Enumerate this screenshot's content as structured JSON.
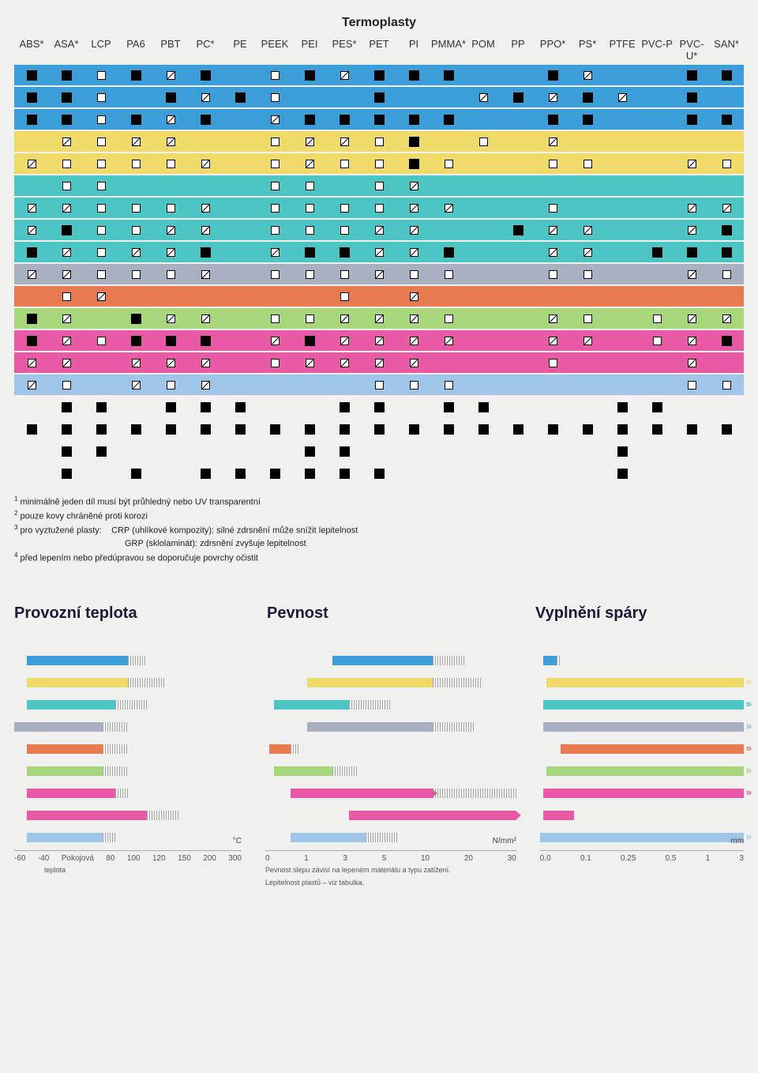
{
  "title": "Termoplasty",
  "columns": [
    "ABS*",
    "ASA*",
    "LCP",
    "PA6",
    "PBT",
    "PC*",
    "PE",
    "PEEK",
    "PEI",
    "PES*",
    "PET",
    "PI",
    "PMMA*",
    "POM",
    "PP",
    "PPO*",
    "PS*",
    "PTFE",
    "PVC-P",
    "PVC-U*",
    "SAN*"
  ],
  "legend": {
    "s": "solid",
    "h": "half",
    "o": "open",
    "": "empty"
  },
  "row_colors": [
    "#3b9ed8",
    "#3b9ed8",
    "#3b9ed8",
    "#f0db6a",
    "#f0db6a",
    "#4ec5c5",
    "#4ec5c5",
    "#4ec5c5",
    "#4ec5c5",
    "#a8b0c2",
    "#e77a50",
    "#a8d67a",
    "#e85aa5",
    "#e85aa5",
    "#9fc5e8",
    "#f0f0ef",
    "#f0f0ef",
    "#f0f0ef",
    "#f0f0ef"
  ],
  "rows": [
    [
      "s",
      "s",
      "o",
      "s",
      "h",
      "s",
      "",
      "o",
      "s",
      "h",
      "s",
      "s",
      "s",
      "",
      "",
      "s",
      "h",
      "",
      "",
      "s",
      "s"
    ],
    [
      "s",
      "s",
      "o",
      "",
      "s",
      "h",
      "s",
      "o",
      "",
      "",
      "s",
      "",
      "",
      "h",
      "s",
      "h",
      "s",
      "h",
      "",
      "s",
      ""
    ],
    [
      "s",
      "s",
      "o",
      "s",
      "h",
      "s",
      "",
      "h",
      "s",
      "s",
      "s",
      "s",
      "s",
      "",
      "",
      "s",
      "s",
      "",
      "",
      "s",
      "s"
    ],
    [
      "",
      "h",
      "o",
      "h",
      "h",
      "",
      "",
      "o",
      "h",
      "h",
      "o",
      "s",
      "",
      "o",
      "",
      "h",
      "",
      "",
      "",
      "",
      ""
    ],
    [
      "h",
      "o",
      "o",
      "o",
      "o",
      "h",
      "",
      "o",
      "h",
      "o",
      "o",
      "s",
      "o",
      "",
      "",
      "o",
      "o",
      "",
      "",
      "h",
      "o"
    ],
    [
      "",
      "o",
      "o",
      "",
      "",
      "",
      "",
      "o",
      "o",
      "",
      "o",
      "h",
      "",
      "",
      "",
      "",
      "",
      "",
      "",
      "",
      ""
    ],
    [
      "h",
      "h",
      "o",
      "o",
      "o",
      "h",
      "",
      "o",
      "o",
      "o",
      "o",
      "h",
      "h",
      "",
      "",
      "o",
      "",
      "",
      "",
      "h",
      "h"
    ],
    [
      "h",
      "s",
      "o",
      "o",
      "h",
      "h",
      "",
      "o",
      "o",
      "o",
      "h",
      "h",
      "",
      "",
      "s",
      "h",
      "h",
      "",
      "",
      "h",
      "s"
    ],
    [
      "s",
      "h",
      "o",
      "h",
      "h",
      "s",
      "",
      "h",
      "s",
      "s",
      "h",
      "h",
      "s",
      "",
      "",
      "h",
      "h",
      "",
      "s",
      "s",
      "s"
    ],
    [
      "h",
      "h",
      "o",
      "o",
      "o",
      "h",
      "",
      "o",
      "o",
      "o",
      "h",
      "o",
      "o",
      "",
      "",
      "o",
      "o",
      "",
      "",
      "h",
      "o"
    ],
    [
      "",
      "o",
      "h",
      "",
      "",
      "",
      "",
      "",
      "",
      "o",
      "",
      "h",
      "",
      "",
      "",
      "",
      "",
      "",
      "",
      "",
      ""
    ],
    [
      "s",
      "h",
      "",
      "s",
      "h",
      "h",
      "",
      "o",
      "o",
      "h",
      "h",
      "h",
      "o",
      "",
      "",
      "h",
      "o",
      "",
      "o",
      "h",
      "h"
    ],
    [
      "s",
      "h",
      "o",
      "s",
      "s",
      "s",
      "",
      "h",
      "s",
      "h",
      "h",
      "h",
      "h",
      "",
      "",
      "h",
      "h",
      "",
      "o",
      "h",
      "s"
    ],
    [
      "h",
      "h",
      "",
      "h",
      "h",
      "h",
      "",
      "o",
      "h",
      "h",
      "h",
      "h",
      "",
      "",
      "",
      "o",
      "",
      "",
      "",
      "h",
      ""
    ],
    [
      "h",
      "o",
      "",
      "h",
      "o",
      "h",
      "",
      "",
      "",
      "",
      "o",
      "o",
      "o",
      "",
      "",
      "",
      "",
      "",
      "",
      "o",
      "o"
    ],
    [
      "",
      "s",
      "s",
      "",
      "s",
      "s",
      "s",
      "",
      "",
      "s",
      "s",
      "",
      "s",
      "s",
      "",
      "",
      "",
      "s",
      "s",
      "",
      ""
    ],
    [
      "s",
      "s",
      "s",
      "s",
      "s",
      "s",
      "s",
      "s",
      "s",
      "s",
      "s",
      "s",
      "s",
      "s",
      "s",
      "s",
      "s",
      "s",
      "s",
      "s",
      "s"
    ],
    [
      "",
      "s",
      "s",
      "",
      "",
      "",
      "",
      "",
      "s",
      "s",
      "",
      "",
      "",
      "",
      "",
      "",
      "",
      "s",
      "",
      "",
      ""
    ],
    [
      "",
      "s",
      "",
      "s",
      "",
      "s",
      "s",
      "s",
      "s",
      "s",
      "s",
      "",
      "",
      "",
      "",
      "",
      "",
      "s",
      "",
      "",
      ""
    ]
  ],
  "notes": {
    "n1": "minimálně jeden díl musí být průhledný nebo UV transparentní",
    "n2": "pouze kovy chráněné proti korozi",
    "n3a": "pro vyztužené plasty:",
    "n3b": "CRP (uhlíkové kompozity): silné zdrsnění může snížit lepitelnost",
    "n3c": "GRP (sklolaminát): zdrsnění zvyšuje lepitelnost",
    "n4": "před lepením nebo předúpravou se doporučuje povrchy očistit"
  },
  "sections": {
    "t1": "Provozní teplota",
    "t2": "Pevnost",
    "t3": "Vyplnění spáry"
  },
  "chart_colors": [
    "#3b9ed8",
    "#f0db6a",
    "#4ec5c5",
    "#a8b0c2",
    "#e77a50",
    "#a8d67a",
    "#e85aa5",
    "#e85aa5",
    "#9fc5e8"
  ],
  "chart1": {
    "unit": "°C",
    "ticks": [
      "-60",
      "-40",
      "Pokojová",
      "80",
      "100",
      "120",
      "150",
      "200",
      "300"
    ],
    "sub": "teplota",
    "range": [
      -60,
      300
    ],
    "bars": [
      {
        "from": -40,
        "to": 120,
        "hatch_from": 120,
        "hatch_to": 150
      },
      {
        "from": -40,
        "to": 120,
        "hatch_from": 120,
        "hatch_to": 180
      },
      {
        "from": -40,
        "to": 100,
        "hatch_from": 100,
        "hatch_to": 150
      },
      {
        "from": -60,
        "to": 80,
        "hatch_from": 80,
        "hatch_to": 120
      },
      {
        "from": -40,
        "to": 80,
        "hatch_from": 80,
        "hatch_to": 120
      },
      {
        "from": -40,
        "to": 80,
        "hatch_from": 80,
        "hatch_to": 120
      },
      {
        "from": -40,
        "to": 100,
        "hatch_from": 100,
        "hatch_to": 120
      },
      {
        "from": -40,
        "to": 150,
        "hatch_from": 150,
        "hatch_to": 200
      },
      {
        "from": -40,
        "to": 80,
        "hatch_from": 80,
        "hatch_to": 100
      }
    ]
  },
  "chart2": {
    "unit": "N/mm²",
    "ticks": [
      "0",
      "1",
      "3",
      "5",
      "10",
      "20",
      "30"
    ],
    "sub1": "Pevnost slepu závisí na lepeném materiálu a typu zatížení.",
    "sub2": "Lepitelnost plastů – viz tabulka.",
    "range": [
      0,
      30
    ],
    "bars": [
      {
        "from": 8,
        "to": 20,
        "hatch_from": 20,
        "hatch_to": 24
      },
      {
        "from": 5,
        "to": 20,
        "hatch_from": 20,
        "hatch_to": 26
      },
      {
        "from": 1,
        "to": 10,
        "hatch_from": 10,
        "hatch_to": 15
      },
      {
        "from": 5,
        "to": 20,
        "hatch_from": 20,
        "hatch_to": 25
      },
      {
        "from": 0.5,
        "to": 3,
        "hatch_from": 3,
        "hatch_to": 4
      },
      {
        "from": 1,
        "to": 8,
        "hatch_from": 8,
        "hatch_to": 11
      },
      {
        "from": 3,
        "to": 20,
        "hatch_from": 20,
        "hatch_to": 30,
        "arrow": true
      },
      {
        "from": 10,
        "to": 30,
        "arrow": true
      },
      {
        "from": 3,
        "to": 12,
        "hatch_from": 12,
        "hatch_to": 16
      }
    ]
  },
  "chart3": {
    "unit": "mm",
    "ticks": [
      "0.0",
      "0.1",
      "0.25",
      "0.5",
      "1",
      "3"
    ],
    "range": [
      0,
      3
    ],
    "bars": [
      {
        "from": 0.05,
        "to": 0.25,
        "hatch_from": 0.25,
        "hatch_to": 0.3
      },
      {
        "from": 0.1,
        "to": 3,
        "hatch_from": 3,
        "hatch_to": 3.3,
        "dbl": true
      },
      {
        "from": 0.05,
        "to": 3,
        "hatch_from": 3,
        "hatch_to": 3.3,
        "dbl": true
      },
      {
        "from": 0.05,
        "to": 3,
        "hatch_from": 3,
        "hatch_to": 3.3,
        "dbl": true
      },
      {
        "from": 0.3,
        "to": 3,
        "hatch_from": 3,
        "hatch_to": 3.3,
        "dbl": true
      },
      {
        "from": 0.1,
        "to": 3,
        "hatch_from": 3,
        "hatch_to": 3.3,
        "dbl": true
      },
      {
        "from": 0.05,
        "to": 3,
        "hatch_from": 3,
        "hatch_to": 3.3,
        "dbl": true
      },
      {
        "from": 0.05,
        "to": 0.5
      },
      {
        "from": 0,
        "to": 3,
        "hatch_from": 3,
        "hatch_to": 3.3,
        "dbl": true
      }
    ]
  }
}
